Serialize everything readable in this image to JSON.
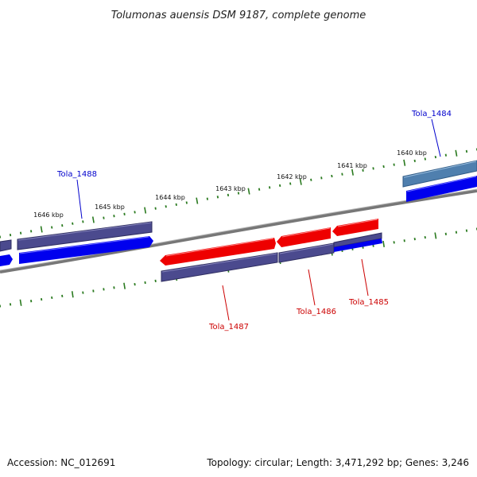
{
  "title": "Tolumonas auensis DSM 9187, complete genome",
  "accession": "Accession: NC_012691",
  "stats": "Topology: circular; Length: 3,471,292 bp; Genes: 3,246",
  "colors": {
    "forward_label": "#0000cc",
    "reverse_label": "#cc0000",
    "backbone": "#777777",
    "tick": "#2a7a1f",
    "cds_blue": "#0000ee",
    "cds_red": "#ee0000",
    "cds_purple": "#4b4a8e",
    "cds_steel": "#4f7fae"
  },
  "kbp_ticks": [
    "1646 kbp",
    "1645 kbp",
    "1644 kbp",
    "1643 kbp",
    "1642 kbp",
    "1641 kbp",
    "1640 kbp"
  ],
  "genes": [
    {
      "label": "Tola_1488",
      "strand": "forward"
    },
    {
      "label": "Tola_1484",
      "strand": "forward"
    },
    {
      "label": "Tola_1487",
      "strand": "reverse"
    },
    {
      "label": "Tola_1486",
      "strand": "reverse"
    },
    {
      "label": "Tola_1485",
      "strand": "reverse"
    }
  ]
}
